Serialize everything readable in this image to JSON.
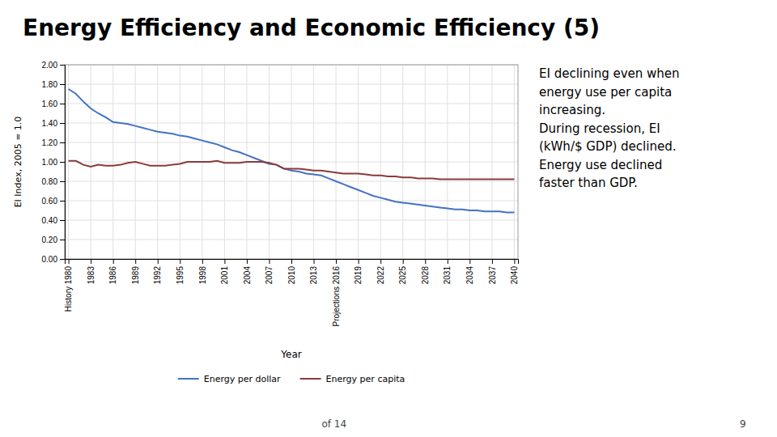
{
  "chart_data": {
    "type": "line",
    "title": "Energy Efficiency and Economic Efficiency (5)",
    "annotation": "EI declining even when\nenergy use per capita\nincreasing.\nDuring recession, EI\n(kWh/$ GDP) declined.\nEnergy use declined\nfaster than GDP.",
    "footer": "of 14",
    "page_number": "9",
    "x_label": "Year",
    "y_label": "EI Index, 2005 = 1.0",
    "x": [
      1980,
      1981,
      1982,
      1983,
      1984,
      1985,
      1986,
      1987,
      1988,
      1989,
      1990,
      1991,
      1992,
      1993,
      1994,
      1995,
      1996,
      1997,
      1998,
      1999,
      2000,
      2001,
      2002,
      2003,
      2004,
      2005,
      2006,
      2007,
      2008,
      2009,
      2010,
      2011,
      2012,
      2013,
      2014,
      2015,
      2016,
      2017,
      2018,
      2019,
      2020,
      2021,
      2022,
      2023,
      2024,
      2025,
      2026,
      2027,
      2028,
      2029,
      2030,
      2031,
      2032,
      2033,
      2034,
      2035,
      2036,
      2037,
      2038,
      2039,
      2040
    ],
    "series": [
      {
        "name": "Energy per dollar",
        "color": "#4472C4",
        "values": [
          1.75,
          1.7,
          1.62,
          1.55,
          1.5,
          1.46,
          1.41,
          1.4,
          1.39,
          1.37,
          1.35,
          1.33,
          1.31,
          1.3,
          1.29,
          1.27,
          1.26,
          1.24,
          1.22,
          1.2,
          1.18,
          1.15,
          1.12,
          1.1,
          1.07,
          1.04,
          1.01,
          0.98,
          0.97,
          0.93,
          0.91,
          0.9,
          0.88,
          0.87,
          0.86,
          0.83,
          0.8,
          0.77,
          0.74,
          0.71,
          0.68,
          0.65,
          0.63,
          0.61,
          0.59,
          0.58,
          0.57,
          0.56,
          0.55,
          0.54,
          0.53,
          0.52,
          0.51,
          0.51,
          0.5,
          0.5,
          0.49,
          0.49,
          0.49,
          0.48,
          0.48
        ]
      },
      {
        "name": "Energy per capita",
        "color": "#8B3A3A",
        "values": [
          1.01,
          1.01,
          0.97,
          0.95,
          0.97,
          0.96,
          0.96,
          0.97,
          0.99,
          1.0,
          0.98,
          0.96,
          0.96,
          0.96,
          0.97,
          0.98,
          1.0,
          1.0,
          1.0,
          1.0,
          1.01,
          0.99,
          0.99,
          0.99,
          1.0,
          1.0,
          1.0,
          0.99,
          0.97,
          0.93,
          0.93,
          0.93,
          0.92,
          0.91,
          0.91,
          0.9,
          0.89,
          0.88,
          0.88,
          0.88,
          0.87,
          0.86,
          0.86,
          0.85,
          0.85,
          0.84,
          0.84,
          0.83,
          0.83,
          0.83,
          0.82,
          0.82,
          0.82,
          0.82,
          0.82,
          0.82,
          0.82,
          0.82,
          0.82,
          0.82,
          0.82
        ]
      }
    ],
    "xlim": [
      1979.5,
      2040.5
    ],
    "xticks": [
      {
        "value": 1980,
        "label": "History 1980"
      },
      1983,
      1986,
      1989,
      1992,
      1995,
      1998,
      2001,
      2004,
      2007,
      2010,
      2013,
      {
        "value": 2016,
        "label": "Projections 2016"
      },
      2019,
      2022,
      2025,
      2028,
      2031,
      2034,
      2037,
      2040
    ],
    "ylim": [
      0.0,
      2.0
    ],
    "yticks": [
      {
        "value": 0.0,
        "label": "0.00"
      },
      {
        "value": 0.2,
        "label": "0.20"
      },
      {
        "value": 0.4,
        "label": "0.40"
      },
      {
        "value": 0.6,
        "label": "0.60"
      },
      {
        "value": 0.8,
        "label": "0.80"
      },
      {
        "value": 1.0,
        "label": "1.00"
      },
      {
        "value": 1.2,
        "label": "1.20"
      },
      {
        "value": 1.4,
        "label": "1.40"
      },
      {
        "value": 1.6,
        "label": "1.60"
      },
      {
        "value": 1.8,
        "label": "1.80"
      },
      {
        "value": 2.0,
        "label": "2.00"
      }
    ],
    "grid": true,
    "legend": "bottom"
  }
}
